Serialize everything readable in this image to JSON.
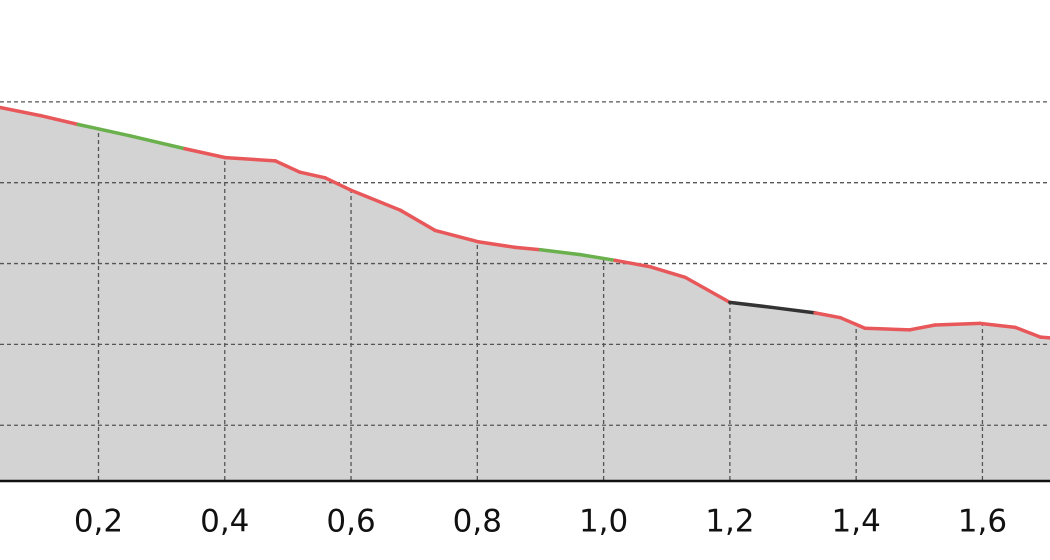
{
  "chart_data": {
    "type": "area",
    "x": [
      0.044,
      0.108,
      0.168,
      0.25,
      0.337,
      0.401,
      0.48,
      0.519,
      0.559,
      0.599,
      0.678,
      0.733,
      0.801,
      0.86,
      0.9,
      0.963,
      1.018,
      1.074,
      1.129,
      1.2,
      1.264,
      1.335,
      1.375,
      1.414,
      1.485,
      1.525,
      1.596,
      1.652,
      1.692,
      1.707
    ],
    "values": [
      4.93,
      4.83,
      4.72,
      4.58,
      4.42,
      4.31,
      4.27,
      4.13,
      4.06,
      3.91,
      3.66,
      3.41,
      3.27,
      3.2,
      3.17,
      3.11,
      3.04,
      2.96,
      2.83,
      2.52,
      2.46,
      2.39,
      2.33,
      2.2,
      2.18,
      2.24,
      2.26,
      2.21,
      2.09,
      2.08
    ],
    "segment_colors": [
      "#e8585a",
      "#e8585a",
      "#6ab04c",
      "#6ab04c",
      "#e8585a",
      "#e8585a",
      "#e8585a",
      "#e8585a",
      "#e8585a",
      "#e8585a",
      "#e8585a",
      "#e8585a",
      "#e8585a",
      "#e8585a",
      "#6ab04c",
      "#6ab04c",
      "#e8585a",
      "#e8585a",
      "#e8585a",
      "#333333",
      "#333333",
      "#e8585a",
      "#e8585a",
      "#e8585a",
      "#e8585a",
      "#e8585a",
      "#e8585a",
      "#e8585a",
      "#e8585a"
    ],
    "fill_color": "#d3d3d3",
    "xlim": [
      0.044,
      1.707
    ],
    "xticks": [
      {
        "value": 0.2,
        "label": "0,2"
      },
      {
        "value": 0.4,
        "label": "0,4"
      },
      {
        "value": 0.6,
        "label": "0,6"
      },
      {
        "value": 0.8,
        "label": "0,8"
      },
      {
        "value": 1.0,
        "label": "1,0"
      },
      {
        "value": 1.2,
        "label": "1,2"
      },
      {
        "value": 1.4,
        "label": "1,4"
      },
      {
        "value": 1.6,
        "label": "1,6"
      }
    ],
    "ylim": [
      0.31,
      6.26
    ],
    "yticks": [
      1,
      2,
      3,
      4,
      5
    ],
    "grid": true
  }
}
